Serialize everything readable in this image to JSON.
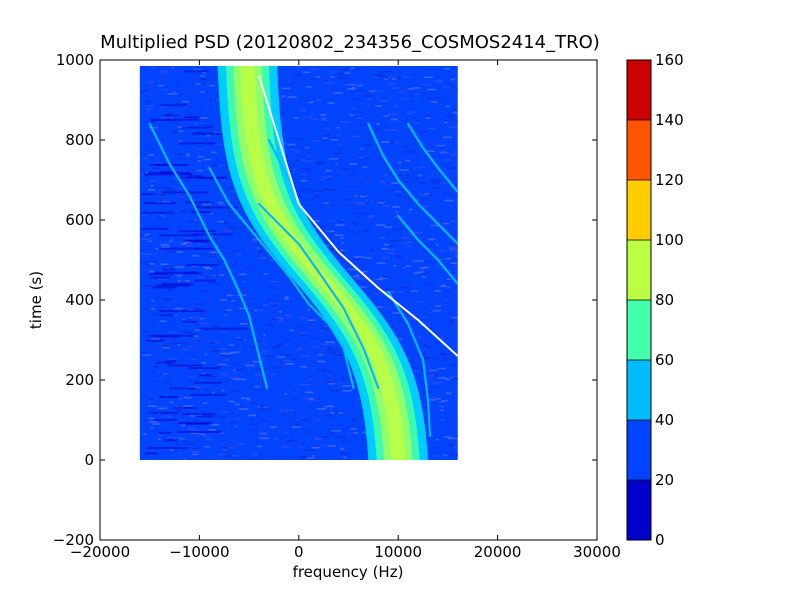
{
  "chart_data": {
    "type": "heatmap",
    "title": "Multiplied PSD (20120802_234356_COSMOS2414_TRO)",
    "xlabel": "frequency (Hz)",
    "ylabel": "time (s)",
    "xlim": [
      -20000,
      30000
    ],
    "ylim": [
      -200,
      1000
    ],
    "x_ticks": [
      -20000,
      -10000,
      0,
      10000,
      20000,
      30000
    ],
    "x_tick_labels": [
      "−20000",
      "−10000",
      "0",
      "10000",
      "20000",
      "30000"
    ],
    "y_ticks": [
      -200,
      0,
      200,
      400,
      600,
      800,
      1000
    ],
    "y_tick_labels": [
      "−200",
      "0",
      "200",
      "400",
      "600",
      "800",
      "1000"
    ],
    "data_extent": {
      "freq_min": -16000,
      "freq_max": 16000,
      "time_min": 0,
      "time_max": 985
    },
    "grid": false,
    "colorbar": {
      "levels": [
        0,
        20,
        40,
        60,
        80,
        100,
        120,
        140,
        160
      ],
      "tick_labels": [
        "0",
        "20",
        "40",
        "60",
        "80",
        "100",
        "120",
        "140",
        "160"
      ],
      "colors": [
        "#0000cd",
        "#0044ff",
        "#00bbff",
        "#44ffaa",
        "#bbff44",
        "#ffcc00",
        "#ff5500",
        "#cc0000"
      ]
    },
    "background_value": 25,
    "noise_speckle_colors": [
      "#2a4ff5",
      "#4b6cf9",
      "#1f3fe6",
      "#0b2fd6"
    ],
    "main_trace": {
      "description": "broad S-shaped Doppler curve",
      "center_freq_at_t0": 10000,
      "center_freq_at_t1000": -5000,
      "inflection_time": 450,
      "width_hz": 6000,
      "band_colors": [
        "#00ccff",
        "#44ffaa",
        "#99ff66",
        "#bbff44"
      ]
    },
    "white_trace": {
      "points": [
        [
          -4000,
          960
        ],
        [
          -2000,
          800
        ],
        [
          0,
          640
        ],
        [
          4000,
          520
        ],
        [
          8000,
          430
        ],
        [
          12000,
          350
        ],
        [
          16000,
          260
        ]
      ],
      "color": "#ffffff"
    },
    "secondary_traces": [
      {
        "points": [
          [
            -15000,
            840
          ],
          [
            -13000,
            740
          ],
          [
            -11000,
            660
          ],
          [
            -9000,
            560
          ],
          [
            -7500,
            500
          ],
          [
            -6000,
            420
          ],
          [
            -5000,
            360
          ],
          [
            -4000,
            260
          ],
          [
            -3200,
            180
          ]
        ]
      },
      {
        "points": [
          [
            -9000,
            730
          ],
          [
            -7000,
            640
          ],
          [
            -5000,
            580
          ],
          [
            -3000,
            520
          ],
          [
            -1000,
            460
          ],
          [
            1000,
            390
          ],
          [
            3000,
            340
          ],
          [
            4500,
            280
          ],
          [
            5500,
            180
          ]
        ]
      },
      {
        "points": [
          [
            -4000,
            640
          ],
          [
            -2000,
            590
          ],
          [
            0,
            540
          ],
          [
            2000,
            470
          ],
          [
            4500,
            380
          ],
          [
            6500,
            280
          ],
          [
            8000,
            180
          ]
        ]
      },
      {
        "points": [
          [
            7000,
            840
          ],
          [
            8500,
            760
          ],
          [
            10000,
            700
          ],
          [
            12000,
            640
          ],
          [
            14000,
            590
          ],
          [
            16000,
            540
          ]
        ]
      },
      {
        "points": [
          [
            11000,
            840
          ],
          [
            12500,
            780
          ],
          [
            14000,
            730
          ],
          [
            16000,
            670
          ]
        ]
      },
      {
        "points": [
          [
            10000,
            610
          ],
          [
            12000,
            550
          ],
          [
            14000,
            500
          ],
          [
            16000,
            440
          ]
        ]
      },
      {
        "points": [
          [
            -3000,
            800
          ],
          [
            -2000,
            750
          ],
          [
            -1000,
            700
          ]
        ]
      },
      {
        "points": [
          [
            9000,
            420
          ],
          [
            11000,
            340
          ],
          [
            12500,
            250
          ],
          [
            13000,
            150
          ],
          [
            13200,
            60
          ]
        ]
      }
    ]
  }
}
